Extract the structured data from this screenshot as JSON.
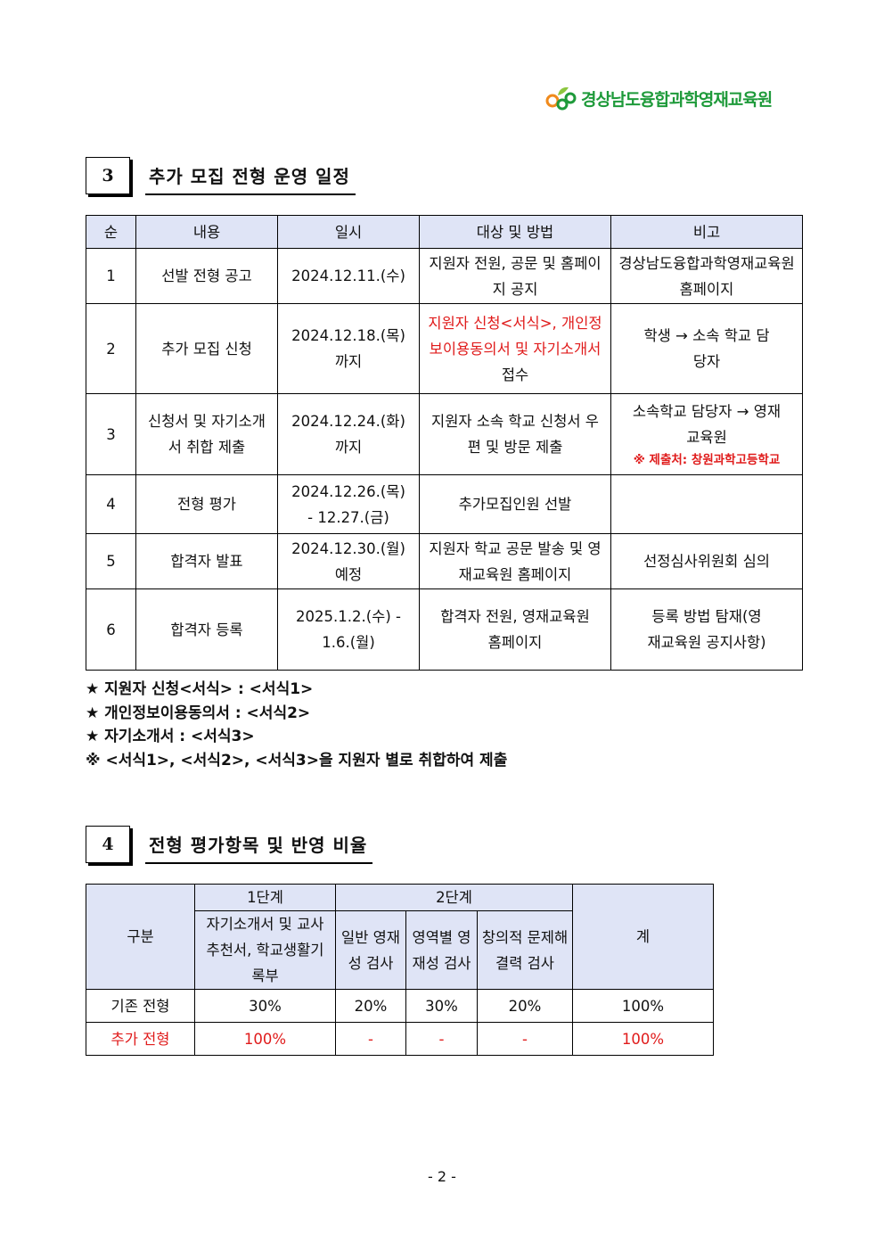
{
  "logo": {
    "text": "경상남도융합과학영재교육원",
    "icon": "gifted-education-logo",
    "color": "#1e9a3a"
  },
  "section3": {
    "number": "3",
    "title": "추가 모집 전형 운영 일정",
    "headers": [
      "순",
      "내용",
      "일시",
      "대상 및 방법",
      "비고"
    ],
    "rows": [
      {
        "no": "1",
        "content": "선발 전형 공고",
        "date": "2024.12.11.(수)",
        "method": "지원자 전원, 공문 및 홈페이지 공지",
        "note": "경상남도융합과학영재교육원 홈페이지"
      },
      {
        "no": "2",
        "content": "추가 모집 신청",
        "date": "2024.12.18.(목) 까지",
        "method_red": "지원자 신청<서식>, 개인정보이용동의서 및 자기소개서",
        "method_tail": "접수",
        "note": "학생 → 소속 학교 담당자"
      },
      {
        "no": "3",
        "content": "신청서 및 자기소개서 취합 제출",
        "date": "2024.12.24.(화) 까지",
        "method": "지원자 소속 학교 신청서 우편 및 방문 제출",
        "note": "소속학교 담당자 → 영재교육원",
        "note_red": "※ 제출처: 창원과학고등학교"
      },
      {
        "no": "4",
        "content": "전형 평가",
        "date": "2024.12.26.(목) - 12.27.(금)",
        "method": "추가모집인원 선발",
        "note": ""
      },
      {
        "no": "5",
        "content": "합격자 발표",
        "date": "2024.12.30.(월) 예정",
        "method": "지원자 학교 공문 발송 및 영재교육원 홈페이지",
        "note": "선정심사위원회 심의"
      },
      {
        "no": "6",
        "content": "합격자 등록",
        "date": "2025.1.2.(수) - 1.6.(월)",
        "method": "합격자 전원, 영재교육원 홈페이지",
        "note": "등록 방법 탐재(영재교육원 공지사항)"
      }
    ],
    "notes": [
      "★ 지원자 신청<서식> : <서식1>",
      "★ 개인정보이용동의서 : <서식2>",
      "★ 자기소개서 : <서식3>",
      "※ <서식1>, <서식2>, <서식3>을 지원자 별로 취합하여 제출"
    ]
  },
  "section4": {
    "number": "4",
    "title": "전형 평가항목 및 반영 비율",
    "header": {
      "category": "구분",
      "stage1": "1단계",
      "stage2": "2단계",
      "total": "계",
      "items": [
        "자기소개서 및 교사 추천서, 학교생활기록부",
        "일반 영재성 검사",
        "영역별 영재성 검사",
        "창의적 문제해결력 검사"
      ]
    },
    "rows": [
      {
        "name": "기존 전형",
        "values": [
          "30%",
          "20%",
          "30%",
          "20%"
        ],
        "total": "100%"
      },
      {
        "name": "추가 전형",
        "values": [
          "100%",
          "-",
          "-",
          "-"
        ],
        "total": "100%",
        "color": "#e01b1b"
      }
    ]
  },
  "page_number": "- 2 -"
}
